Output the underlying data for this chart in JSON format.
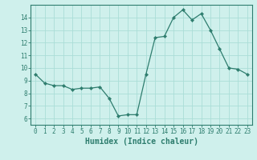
{
  "x": [
    0,
    1,
    2,
    3,
    4,
    5,
    6,
    7,
    8,
    9,
    10,
    11,
    12,
    13,
    14,
    15,
    16,
    17,
    18,
    19,
    20,
    21,
    22,
    23
  ],
  "y": [
    9.5,
    8.8,
    8.6,
    8.6,
    8.3,
    8.4,
    8.4,
    8.5,
    7.6,
    6.2,
    6.3,
    6.3,
    9.5,
    12.4,
    12.5,
    14.0,
    14.6,
    13.8,
    14.3,
    13.0,
    11.5,
    10.0,
    9.9,
    9.5
  ],
  "line_color": "#2e7d6e",
  "marker": "D",
  "marker_size": 2.2,
  "bg_color": "#cff0ec",
  "grid_color": "#aaddd7",
  "axis_color": "#2e7d6e",
  "xlabel": "Humidex (Indice chaleur)",
  "xlim": [
    -0.5,
    23.5
  ],
  "ylim": [
    5.5,
    15.0
  ],
  "yticks": [
    6,
    7,
    8,
    9,
    10,
    11,
    12,
    13,
    14
  ],
  "xticks": [
    0,
    1,
    2,
    3,
    4,
    5,
    6,
    7,
    8,
    9,
    10,
    11,
    12,
    13,
    14,
    15,
    16,
    17,
    18,
    19,
    20,
    21,
    22,
    23
  ],
  "tick_fontsize": 5.5,
  "xlabel_fontsize": 7.0
}
